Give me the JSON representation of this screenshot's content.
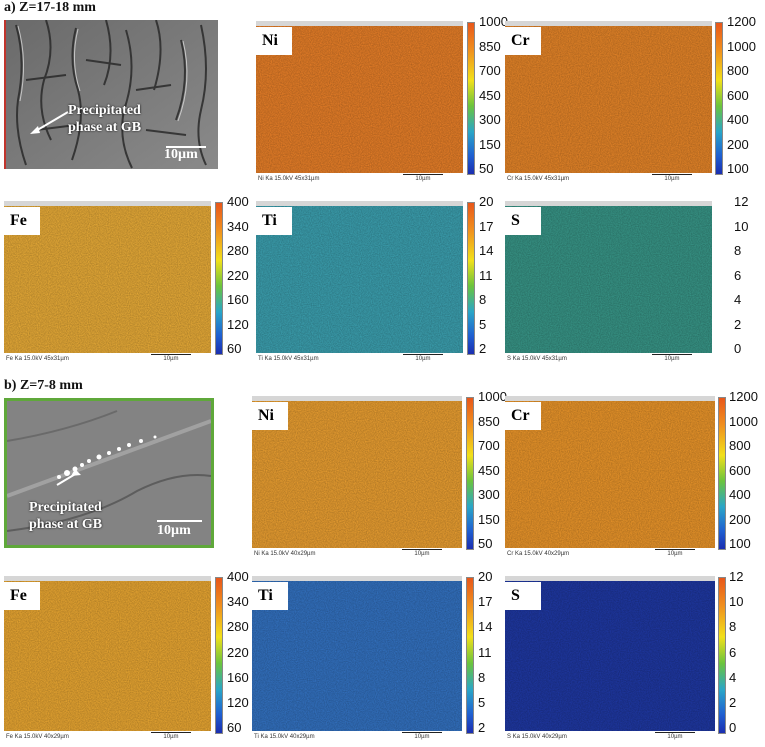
{
  "panel_a": {
    "title": "a)  Z=17-18 mm",
    "sem": {
      "annotation_line1": "Precipitated",
      "annotation_line2": "phase at GB",
      "scale_bar": "10µm"
    },
    "maps": [
      {
        "element": "Ni",
        "condition": "Ni Ka 15.0kV 45x31µm",
        "scale": "10µm",
        "ticks": [
          "1000",
          "850",
          "700",
          "450",
          "300",
          "150",
          "50"
        ],
        "color": "#f0842a"
      },
      {
        "element": "Cr",
        "condition": "Cr Ka 15.0kV 45x31µm",
        "scale": "10µm",
        "ticks": [
          "1200",
          "1000",
          "800",
          "600",
          "400",
          "200",
          "100"
        ],
        "color": "#ee8a2a"
      },
      {
        "element": "Fe",
        "condition": "Fe Ka 15.0kV 45x31µm",
        "scale": "10µm",
        "ticks": [
          "400",
          "340",
          "280",
          "220",
          "160",
          "120",
          "60"
        ],
        "color": "#f1b23a"
      },
      {
        "element": "Ti",
        "condition": "Ti Ka 15.0kV 45x31µm",
        "scale": "10µm",
        "ticks": [
          "20",
          "17",
          "14",
          "11",
          "8",
          "5",
          "2"
        ],
        "color": "#3ea6b6"
      },
      {
        "element": "S",
        "condition": "S Ka 15.0kV 45x31µm",
        "scale": "10µm",
        "ticks": [
          "12",
          "10",
          "8",
          "6",
          "4",
          "2",
          "0"
        ],
        "color": "#3a9b8c"
      }
    ]
  },
  "panel_b": {
    "title": "b)  Z=7-8 mm",
    "sem": {
      "annotation_line1": "Precipitated",
      "annotation_line2": "phase at GB",
      "scale_bar": "10µm"
    },
    "maps": [
      {
        "element": "Ni",
        "condition": "Ni Ka 15.0kV 40x29µm",
        "scale": "10µm",
        "ticks": [
          "1000",
          "850",
          "700",
          "450",
          "300",
          "150",
          "50"
        ],
        "color": "#f3a533"
      },
      {
        "element": "Cr",
        "condition": "Cr Ka 15.0kV 40x29µm",
        "scale": "10µm",
        "ticks": [
          "1200",
          "1000",
          "800",
          "600",
          "400",
          "200",
          "100"
        ],
        "color": "#f39b2c"
      },
      {
        "element": "Fe",
        "condition": "Fe Ka 15.0kV 40x29µm",
        "scale": "10µm",
        "ticks": [
          "400",
          "340",
          "280",
          "220",
          "160",
          "120",
          "60"
        ],
        "color": "#f2ad34"
      },
      {
        "element": "Ti",
        "condition": "Ti Ka 15.0kV 40x29µm",
        "scale": "10µm",
        "ticks": [
          "20",
          "17",
          "14",
          "11",
          "8",
          "5",
          "2"
        ],
        "color": "#3576c8"
      },
      {
        "element": "S",
        "condition": "S Ka 15.0kV 40x29µm",
        "scale": "10µm",
        "ticks": [
          "12",
          "10",
          "8",
          "6",
          "4",
          "2",
          "0"
        ],
        "color": "#203aa8"
      }
    ]
  }
}
